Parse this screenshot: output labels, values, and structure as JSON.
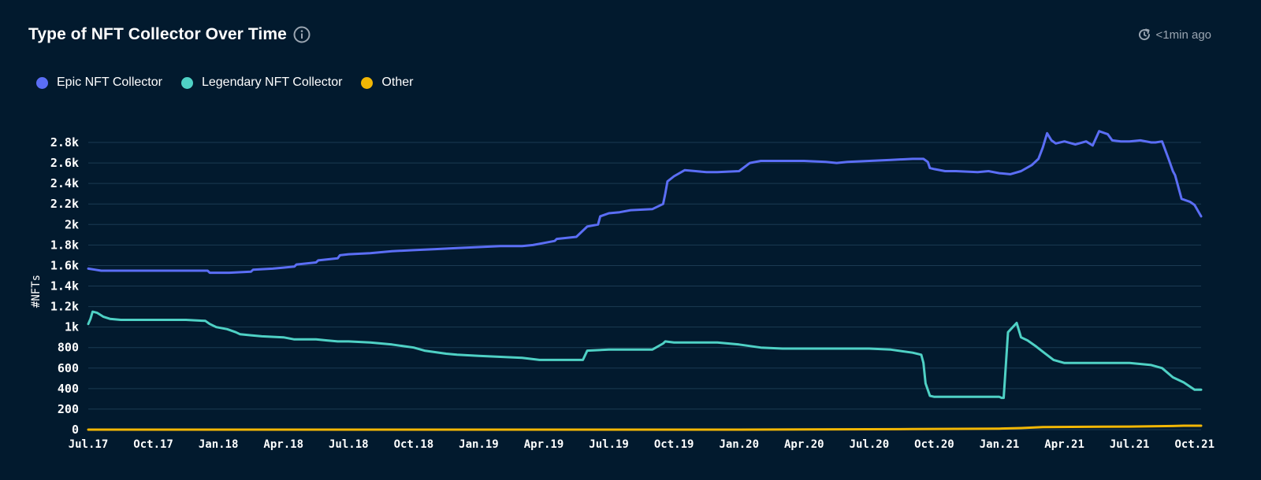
{
  "header": {
    "title": "Type of NFT Collector Over Time",
    "updated": "<1min ago"
  },
  "icons": {
    "info": "info-icon",
    "refresh": "refresh-clock-icon"
  },
  "colors": {
    "background": "#021a2e",
    "grid": "#1b3a52",
    "epic": "#5b6ef5",
    "legendary": "#4fd1c5",
    "other": "#f2b705"
  },
  "chart_data": {
    "type": "line",
    "title": "Type of NFT Collector Over Time",
    "xlabel": "",
    "ylabel": "#NFTs",
    "ylim": [
      0,
      2900
    ],
    "yticks": [
      0,
      200,
      400,
      600,
      800,
      1000,
      1200,
      1400,
      1600,
      1800,
      2000,
      2200,
      2400,
      2600,
      2800
    ],
    "ytick_labels": [
      "0",
      "200",
      "400",
      "600",
      "800",
      "1k",
      "1.2k",
      "1.4k",
      "1.6k",
      "1.8k",
      "2k",
      "2.2k",
      "2.4k",
      "2.6k",
      "2.8k"
    ],
    "xlim": [
      0,
      51.3
    ],
    "xtick_pos": [
      0,
      3,
      6,
      9,
      12,
      15,
      18,
      21,
      24,
      27,
      30,
      33,
      36,
      39,
      42,
      45,
      48,
      51
    ],
    "xtick_labels": [
      "Jul.17",
      "Oct.17",
      "Jan.18",
      "Apr.18",
      "Jul.18",
      "Oct.18",
      "Jan.19",
      "Apr.19",
      "Jul.19",
      "Oct.19",
      "Jan.20",
      "Apr.20",
      "Jul.20",
      "Oct.20",
      "Jan.21",
      "Apr.21",
      "Jul.21",
      "Oct.21"
    ],
    "x_unit": "months since Jul.17",
    "grid": true,
    "legend_position": "top-left",
    "series": [
      {
        "name": "Epic NFT Collector",
        "color": "#5b6ef5",
        "x": [
          0,
          0.3,
          0.6,
          1.5,
          3,
          4.5,
          5.5,
          5.6,
          6.5,
          7.5,
          7.6,
          8.5,
          9,
          9.5,
          9.6,
          10.5,
          10.6,
          11.5,
          11.6,
          12,
          13,
          14,
          15,
          16,
          17,
          18,
          19,
          20,
          20.5,
          21,
          21.5,
          21.6,
          22.5,
          23,
          23.5,
          23.6,
          24,
          24.5,
          25,
          26,
          26.5,
          26.6,
          26.7,
          27,
          27.5,
          28,
          28.5,
          29,
          30,
          30.5,
          31,
          32,
          33,
          34,
          34.5,
          35,
          36,
          37,
          38,
          38.5,
          38.7,
          38.8,
          39,
          39.5,
          40,
          41,
          41.5,
          42,
          42.5,
          43,
          43.5,
          43.8,
          44,
          44.2,
          44.4,
          44.6,
          45,
          45.5,
          46,
          46.3,
          46.6,
          47,
          47.2,
          47.6,
          48,
          48.5,
          49,
          49.2,
          49.5,
          49.8,
          50,
          50.1,
          50.4,
          50.8,
          51,
          51.3
        ],
        "values": [
          1570,
          1560,
          1550,
          1550,
          1550,
          1550,
          1550,
          1530,
          1530,
          1540,
          1560,
          1570,
          1580,
          1590,
          1610,
          1630,
          1650,
          1670,
          1700,
          1710,
          1720,
          1740,
          1750,
          1760,
          1770,
          1780,
          1790,
          1790,
          1800,
          1820,
          1840,
          1860,
          1880,
          1980,
          2000,
          2080,
          2110,
          2120,
          2140,
          2150,
          2200,
          2300,
          2420,
          2470,
          2530,
          2520,
          2510,
          2510,
          2520,
          2600,
          2620,
          2620,
          2620,
          2610,
          2600,
          2610,
          2620,
          2630,
          2640,
          2640,
          2610,
          2550,
          2540,
          2520,
          2520,
          2510,
          2520,
          2500,
          2490,
          2520,
          2580,
          2640,
          2750,
          2890,
          2820,
          2790,
          2810,
          2780,
          2810,
          2770,
          2910,
          2880,
          2820,
          2810,
          2810,
          2820,
          2800,
          2800,
          2810,
          2640,
          2520,
          2480,
          2250,
          2220,
          2190,
          2080
        ]
      },
      {
        "name": "Legendary NFT Collector",
        "color": "#4fd1c5",
        "x": [
          0,
          0.1,
          0.2,
          0.4,
          0.7,
          1,
          1.5,
          3,
          4.5,
          5.4,
          5.6,
          5.9,
          6.4,
          6.8,
          7,
          7.5,
          8,
          9,
          9.5,
          10.5,
          11,
          11.5,
          12,
          13,
          14,
          15,
          15.5,
          16.5,
          17,
          18,
          19,
          20,
          20.8,
          21,
          22,
          22.8,
          23,
          24,
          25,
          26,
          26.5,
          26.6,
          27,
          28,
          29,
          30,
          31,
          32,
          33,
          34,
          35,
          36,
          37,
          38,
          38.4,
          38.5,
          38.6,
          38.8,
          39,
          40,
          41,
          42,
          42.1,
          42.2,
          42.4,
          42.8,
          43,
          43.3,
          43.7,
          44,
          44.5,
          45,
          46,
          47,
          48,
          49,
          49.5,
          50,
          50.5,
          51,
          51.3
        ],
        "values": [
          1030,
          1080,
          1150,
          1140,
          1100,
          1080,
          1070,
          1070,
          1070,
          1060,
          1030,
          1000,
          980,
          950,
          930,
          920,
          910,
          900,
          880,
          880,
          870,
          860,
          860,
          850,
          830,
          800,
          770,
          740,
          730,
          720,
          710,
          700,
          680,
          680,
          680,
          680,
          770,
          780,
          780,
          780,
          840,
          860,
          850,
          850,
          850,
          830,
          800,
          790,
          790,
          790,
          790,
          790,
          780,
          750,
          730,
          650,
          450,
          330,
          320,
          320,
          320,
          320,
          310,
          310,
          950,
          1040,
          900,
          870,
          810,
          760,
          680,
          650,
          650,
          650,
          650,
          630,
          600,
          510,
          460,
          390,
          390
        ]
      },
      {
        "name": "Other",
        "color": "#f2b705",
        "x": [
          0,
          10,
          20,
          30,
          38,
          42,
          43,
          44,
          46,
          48,
          50,
          50.5,
          51.3
        ],
        "values": [
          0,
          0,
          0,
          0,
          5,
          10,
          15,
          25,
          28,
          30,
          35,
          38,
          38
        ]
      }
    ]
  }
}
